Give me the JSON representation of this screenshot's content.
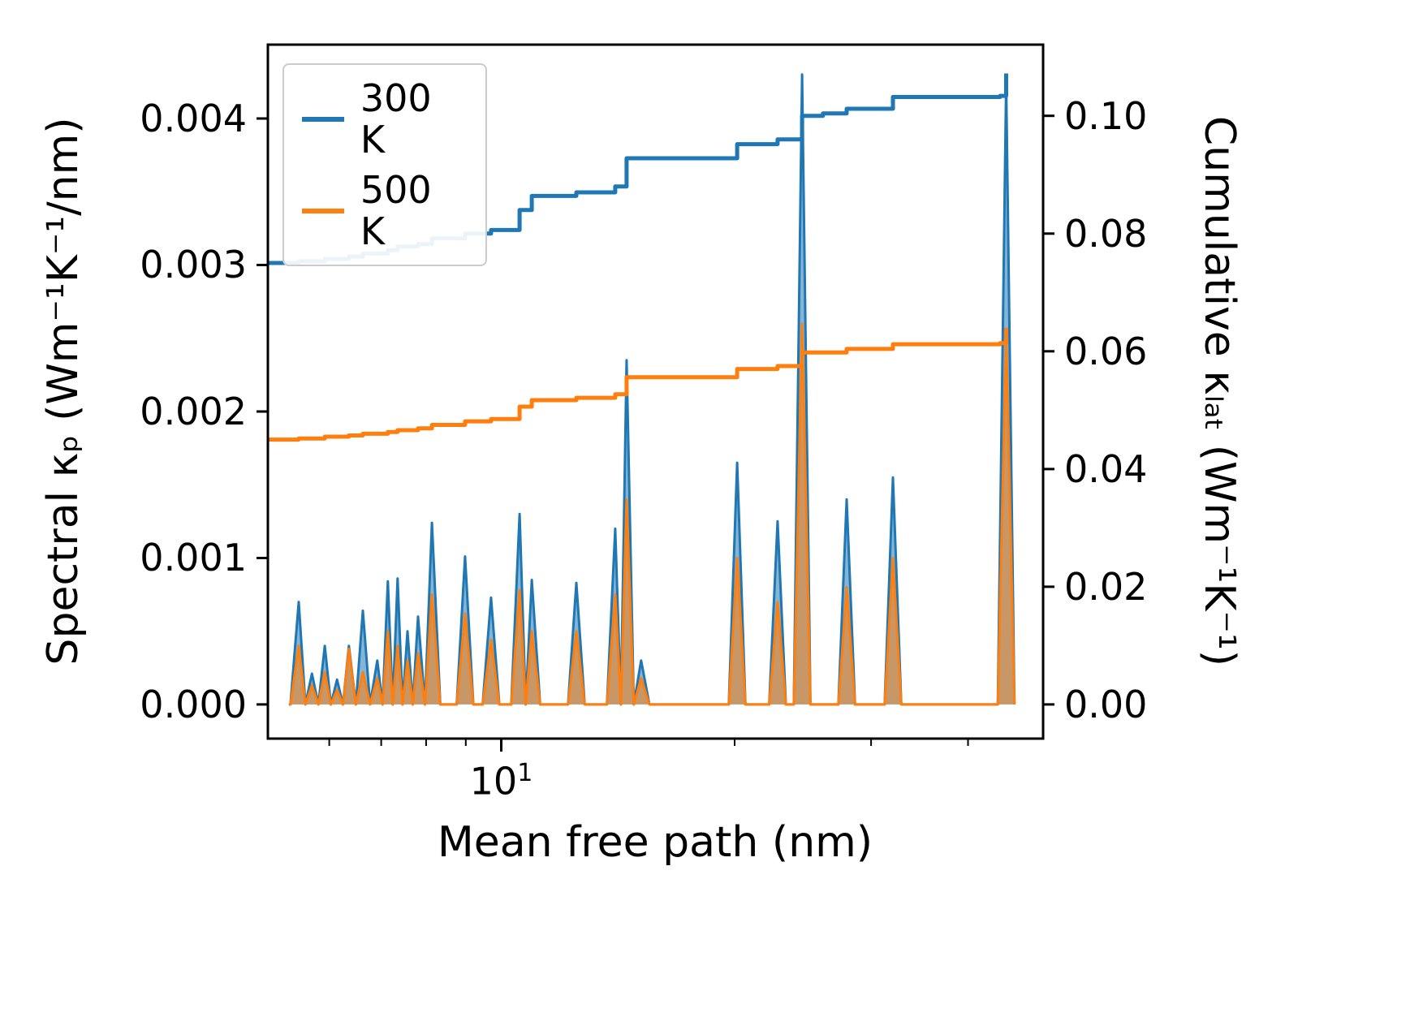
{
  "figure": {
    "background": "#ffffff"
  },
  "axes": {
    "xlabel": "Mean free path (nm)",
    "ylabel_left": "Spectral κₚ (Wm⁻¹K⁻¹/nm)",
    "ylabel_right": "Cumulative κₗₐₜ (Wm⁻¹K⁻¹)",
    "x_tick_base": "10",
    "x_tick_exp": "1",
    "y_left_ticks": [
      "0.000",
      "0.001",
      "0.002",
      "0.003",
      "0.004"
    ],
    "y_right_ticks": [
      "0.00",
      "0.02",
      "0.04",
      "0.06",
      "0.08",
      "0.10"
    ],
    "spine_color": "#000000"
  },
  "legend": {
    "items": [
      {
        "label": "300 K",
        "color": "#1f77b4"
      },
      {
        "label": "500 K",
        "color": "#ff7f0e"
      }
    ]
  },
  "chart_data": {
    "type": "line",
    "title": "",
    "xlabel": "Mean free path (nm)",
    "ylabel_left": "Spectral kappa_p (W/m/K/nm)",
    "ylabel_right": "Cumulative kappa_lat (W/m/K)",
    "x_scale": "log",
    "xlim": [
      5,
      50
    ],
    "ylim_left": [
      -0.000233,
      0.004504
    ],
    "ylim_right": [
      -0.0058,
      0.1121
    ],
    "x_major_ticks": [
      10
    ],
    "x_minor_ticks": [
      6,
      7,
      8,
      9,
      20,
      30,
      40
    ],
    "grid": false,
    "legend_position": "upper left",
    "series": [
      {
        "id": "spectral-300k",
        "name": "300 K",
        "role": "spectral",
        "axis": "left",
        "style": "peaks",
        "color": "#1f77b4",
        "fill_alpha": 0.55,
        "points": [
          [
            5.48,
            0.0007
          ],
          [
            5.7,
            0.00021
          ],
          [
            5.92,
            0.0004
          ],
          [
            6.14,
            0.00017
          ],
          [
            6.36,
            0.0004
          ],
          [
            6.63,
            0.00064
          ],
          [
            6.92,
            0.0003
          ],
          [
            7.14,
            0.00084
          ],
          [
            7.35,
            0.00086
          ],
          [
            7.57,
            0.0005
          ],
          [
            7.81,
            0.0006
          ],
          [
            8.14,
            0.00124
          ],
          [
            8.98,
            0.00101
          ],
          [
            9.7,
            0.00073
          ],
          [
            10.56,
            0.0013
          ],
          [
            10.95,
            0.00085
          ],
          [
            12.5,
            0.00083
          ],
          [
            14.03,
            0.0012
          ],
          [
            14.51,
            0.00235
          ],
          [
            15.15,
            0.0003
          ],
          [
            20.15,
            0.00165
          ],
          [
            22.72,
            0.00125
          ],
          [
            24.44,
            0.0043
          ],
          [
            27.9,
            0.0014
          ],
          [
            32.01,
            0.00155
          ],
          [
            44.8,
            0.00425
          ]
        ]
      },
      {
        "id": "spectral-500k",
        "name": "500 K",
        "role": "spectral",
        "axis": "left",
        "style": "peaks",
        "color": "#ff7f0e",
        "fill_alpha": 0.55,
        "points": [
          [
            5.48,
            0.0004
          ],
          [
            5.7,
            0.00013
          ],
          [
            5.92,
            0.00022
          ],
          [
            6.14,
            0.0001
          ],
          [
            6.36,
            0.00038
          ],
          [
            6.63,
            0.00022
          ],
          [
            6.92,
            0.00018
          ],
          [
            7.14,
            0.0005
          ],
          [
            7.35,
            0.0004
          ],
          [
            7.57,
            0.0003
          ],
          [
            7.81,
            0.00035
          ],
          [
            8.14,
            0.00075
          ],
          [
            8.98,
            0.00062
          ],
          [
            9.7,
            0.00044
          ],
          [
            10.56,
            0.00078
          ],
          [
            10.95,
            0.0005
          ],
          [
            12.5,
            0.0005
          ],
          [
            14.03,
            0.00075
          ],
          [
            14.51,
            0.0014
          ],
          [
            15.15,
            0.00018
          ],
          [
            20.15,
            0.001
          ],
          [
            22.72,
            0.0007
          ],
          [
            24.44,
            0.0026
          ],
          [
            27.9,
            0.0008
          ],
          [
            32.01,
            0.001
          ],
          [
            44.8,
            0.00255
          ]
        ]
      },
      {
        "id": "cumulative-300k",
        "name": "300 K",
        "role": "cumulative",
        "axis": "right",
        "style": "step",
        "color": "#1f77b4",
        "points": [
          [
            5,
            0.075
          ],
          [
            5.48,
            0.0753
          ],
          [
            5.92,
            0.0757
          ],
          [
            6.36,
            0.0761
          ],
          [
            6.63,
            0.0766
          ],
          [
            7.14,
            0.0772
          ],
          [
            7.35,
            0.0778
          ],
          [
            7.81,
            0.0782
          ],
          [
            8.14,
            0.0792
          ],
          [
            8.98,
            0.08
          ],
          [
            9.7,
            0.0806
          ],
          [
            10.56,
            0.084
          ],
          [
            10.95,
            0.0864
          ],
          [
            12.5,
            0.087
          ],
          [
            14.03,
            0.088
          ],
          [
            14.51,
            0.0928
          ],
          [
            20.15,
            0.0952
          ],
          [
            22.72,
            0.096
          ],
          [
            24.44,
            0.1
          ],
          [
            26,
            0.1004
          ],
          [
            27.9,
            0.1012
          ],
          [
            32.01,
            0.1032
          ],
          [
            44,
            0.1034
          ],
          [
            44.8,
            0.1072
          ]
        ]
      },
      {
        "id": "cumulative-500k",
        "name": "500 K",
        "role": "cumulative",
        "axis": "right",
        "style": "step",
        "color": "#ff7f0e",
        "points": [
          [
            5,
            0.045
          ],
          [
            5.48,
            0.0452
          ],
          [
            5.92,
            0.0455
          ],
          [
            6.36,
            0.0457
          ],
          [
            6.63,
            0.046
          ],
          [
            7.14,
            0.0463
          ],
          [
            7.35,
            0.0466
          ],
          [
            7.81,
            0.0469
          ],
          [
            8.14,
            0.0475
          ],
          [
            8.98,
            0.0481
          ],
          [
            9.7,
            0.0485
          ],
          [
            10.56,
            0.0506
          ],
          [
            10.95,
            0.0517
          ],
          [
            12.5,
            0.0521
          ],
          [
            14.03,
            0.0527
          ],
          [
            14.51,
            0.0556
          ],
          [
            20.15,
            0.057
          ],
          [
            22.72,
            0.0575
          ],
          [
            24.44,
            0.0598
          ],
          [
            27.9,
            0.0604
          ],
          [
            32.01,
            0.0612
          ],
          [
            44,
            0.0614
          ],
          [
            44.8,
            0.064
          ]
        ]
      }
    ]
  }
}
